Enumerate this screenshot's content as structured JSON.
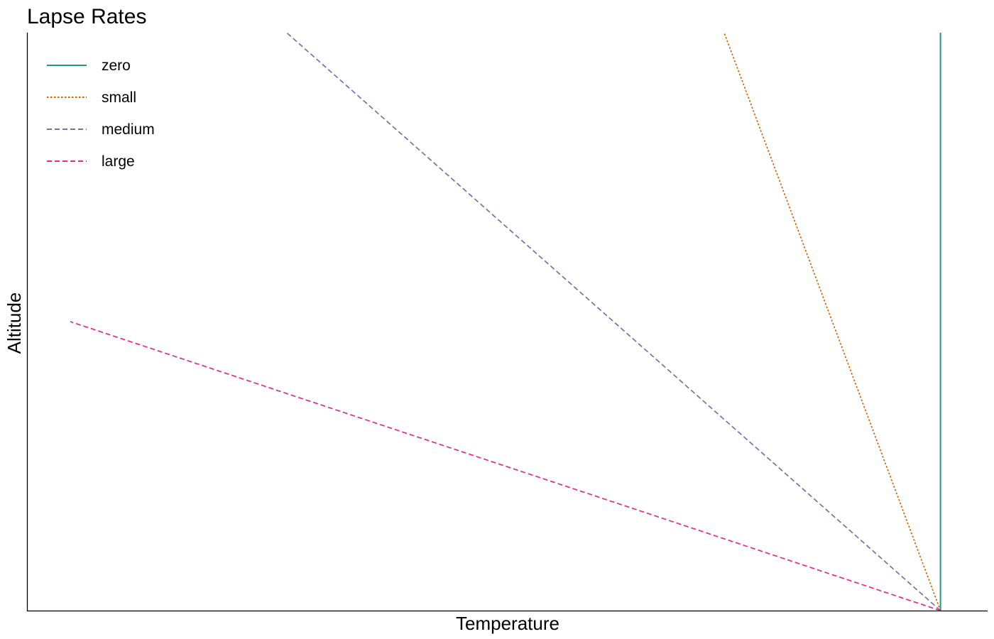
{
  "chart_data": {
    "type": "line",
    "title": "Lapse Rates",
    "xlabel": "Temperature",
    "ylabel": "Altitude",
    "x_ticks_visible": false,
    "y_ticks_visible": false,
    "grid": false,
    "legend_position": "top-left",
    "xlim": [
      -0.95,
      0.049
    ],
    "ylim": [
      0,
      1.0
    ],
    "series": [
      {
        "name": "zero",
        "color": "#1B9E77",
        "dash": "solid",
        "x": [
          0,
          0
        ],
        "y": [
          0,
          1.0
        ]
      },
      {
        "name": "small",
        "color": "#D95F02",
        "dash": "dotted",
        "x": [
          0,
          -0.225
        ],
        "y": [
          0,
          1.0
        ]
      },
      {
        "name": "medium",
        "color": "#7570B3",
        "dash": "dashed",
        "x": [
          0,
          -0.68
        ],
        "y": [
          0,
          1.0
        ]
      },
      {
        "name": "large",
        "color": "#E7298A",
        "dash": "dashed",
        "x": [
          0,
          -0.905
        ],
        "y": [
          0,
          0.5
        ]
      }
    ]
  }
}
